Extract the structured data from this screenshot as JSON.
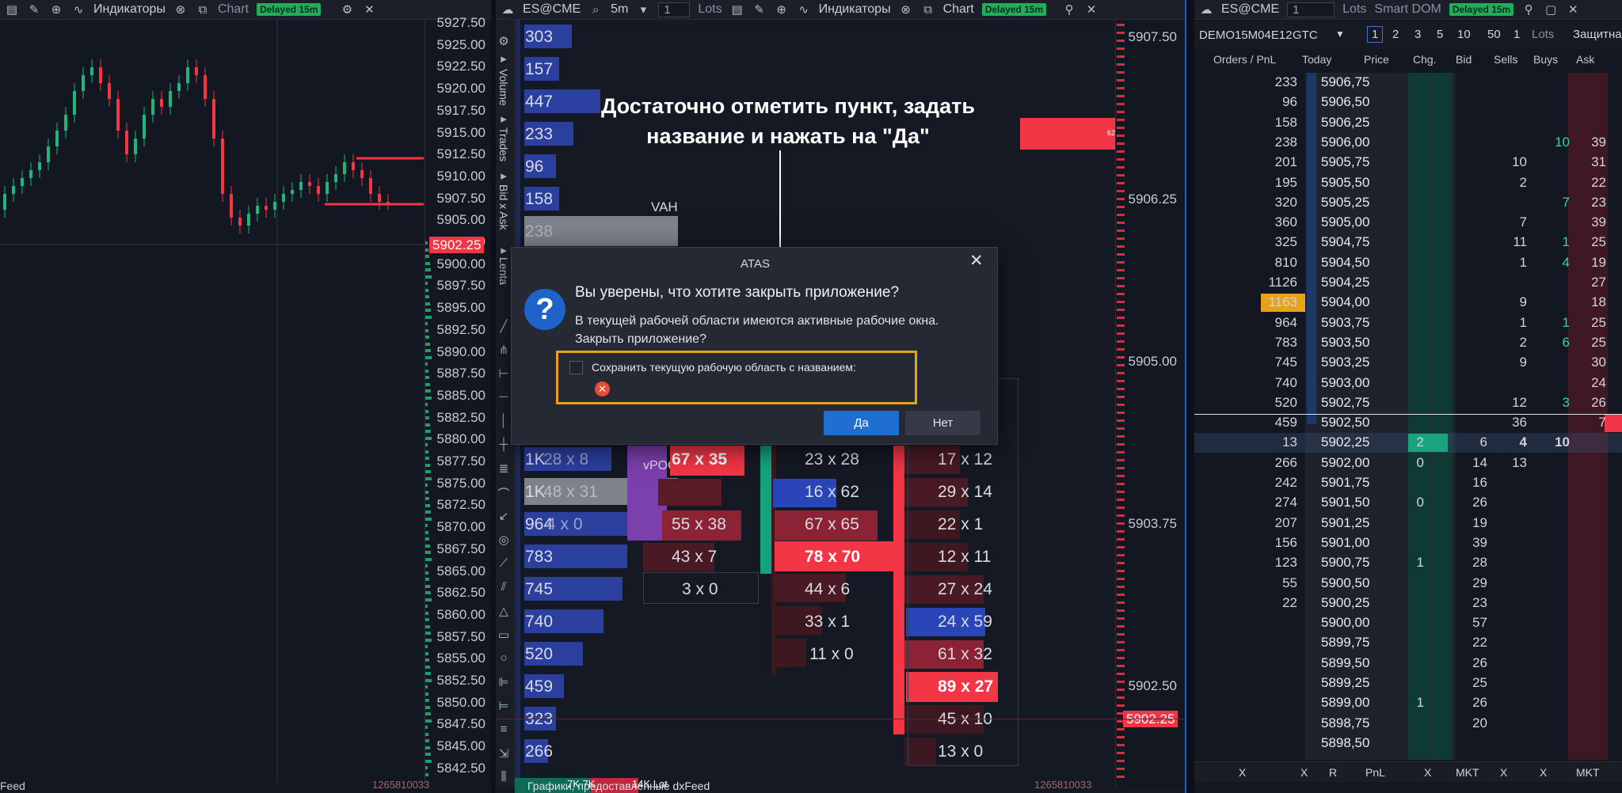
{
  "left_pane": {
    "toolbar": {
      "indicators": "Индикаторы",
      "chart": "Chart",
      "delayed": "Delayed 15m"
    },
    "price_labels": [
      "5927.50",
      "5925.00",
      "5922.50",
      "5920.00",
      "5917.50",
      "5915.00",
      "5912.50",
      "5910.00",
      "5907.50",
      "5905.00",
      "5902.50",
      "5900.00",
      "5897.50",
      "5895.00",
      "5892.50",
      "5890.00",
      "5887.50",
      "5885.00",
      "5882.50",
      "5880.00",
      "5877.50",
      "5875.00",
      "5872.50",
      "5870.00",
      "5867.50",
      "5865.00",
      "5862.50",
      "5860.00",
      "5857.50",
      "5855.00",
      "5852.50",
      "5850.00",
      "5847.50",
      "5845.00",
      "5842.50"
    ],
    "current_price": "5902.25",
    "bottom_left": "Feed",
    "bottom_right": "1265810033"
  },
  "mid_pane": {
    "toolbar": {
      "symbol": "ES@CME",
      "tf": "5m",
      "qty": "1",
      "lots": "Lots",
      "indicators": "Индикаторы",
      "chart": "Chart",
      "delayed": "Delayed 15m"
    },
    "vertical_tabs": [
      "Volume",
      "Trades",
      "Bid x Ask",
      "Lenta"
    ],
    "profile_top": [
      "303",
      "157",
      "447",
      "233",
      "96",
      "158",
      "238"
    ],
    "vah": "VAH",
    "profile_bottom": [
      "1K",
      "1K",
      "964",
      "783",
      "745",
      "740",
      "520",
      "459",
      "323",
      "266"
    ],
    "cluster_left": [
      "28 x 8",
      "48 x 31",
      "4 x 0"
    ],
    "vpoc": "vPOC",
    "cluster_c1": [
      "67 x 35",
      "55 x 38",
      "43 x 7",
      "3 x 0"
    ],
    "cluster_c2": [
      "23 x 28",
      "16 x 62",
      "67 x 65",
      "78 x 70",
      "44 x 6",
      "33 x 1",
      "11 x 0"
    ],
    "cluster_c3": [
      "17 x 12",
      "29 x 14",
      "22 x 1",
      "12 x 11",
      "27 x 24",
      "24 x 59",
      "61 x 32",
      "89 x 27",
      "45 x 10",
      "13 x 0"
    ],
    "price_labels": [
      "5907.50",
      "5906.25",
      "5905.00",
      "5903.75",
      "5902.50"
    ],
    "current_price": "5902.25",
    "bottom_text": "Графики, предоставленные dxFeed",
    "bottom_right": "1265810033",
    "bottom_left_bar": "7K 7K",
    "bottom_bar2": "14K Lot"
  },
  "annotation": {
    "line1": "Достаточно отметить пункт, задать",
    "line2": "название и нажать на \"Да\""
  },
  "dialog": {
    "title": "ATAS",
    "question": "Вы уверены, что хотите закрыть приложение?",
    "detail1": "В текущей рабочей области имеются активные рабочие окна.",
    "detail2": "Закрыть приложение?",
    "checkbox_label": "Сохранить текущую рабочую область с названием:",
    "yes": "Да",
    "no": "Нет"
  },
  "dom_pane": {
    "toolbar": {
      "symbol": "ES@CME",
      "qty": "1",
      "lots": "Lots",
      "smart": "Smart DOM",
      "delayed": "Delayed 15m"
    },
    "account": "DEMO15M04E12",
    "tif": "GTC",
    "qty_presets": [
      "1",
      "2",
      "3",
      "5",
      "10",
      "50",
      "1"
    ],
    "lots_label": "Lots",
    "protect": "Защитна",
    "headers": [
      "Orders / PnL",
      "Today",
      "Price",
      "Chg.",
      "Bid",
      "Sells",
      "Buys",
      "Ask"
    ],
    "rows": [
      {
        "today": "233",
        "price": "5906,75",
        "chg": "",
        "bid": "",
        "sells": "",
        "buys": "",
        "ask": ""
      },
      {
        "today": "96",
        "price": "5906,50",
        "chg": "",
        "bid": "",
        "sells": "",
        "buys": "",
        "ask": ""
      },
      {
        "today": "158",
        "price": "5906,25",
        "chg": "",
        "bid": "",
        "sells": "",
        "buys": "",
        "ask": ""
      },
      {
        "today": "238",
        "price": "5906,00",
        "chg": "",
        "bid": "",
        "sells": "",
        "buys": "10",
        "ask": "39"
      },
      {
        "today": "201",
        "price": "5905,75",
        "chg": "",
        "bid": "",
        "sells": "10",
        "buys": "",
        "ask": "31"
      },
      {
        "today": "195",
        "price": "5905,50",
        "chg": "",
        "bid": "",
        "sells": "2",
        "buys": "",
        "ask": "22"
      },
      {
        "today": "320",
        "price": "5905,25",
        "chg": "",
        "bid": "",
        "sells": "",
        "buys": "7",
        "ask": "23"
      },
      {
        "today": "360",
        "price": "5905,00",
        "chg": "",
        "bid": "",
        "sells": "7",
        "buys": "",
        "ask": "39"
      },
      {
        "today": "325",
        "price": "5904,75",
        "chg": "",
        "bid": "",
        "sells": "11",
        "buys": "1",
        "ask": "25"
      },
      {
        "today": "810",
        "price": "5904,50",
        "chg": "",
        "bid": "",
        "sells": "1",
        "buys": "4",
        "ask": "19"
      },
      {
        "today": "1126",
        "price": "5904,25",
        "chg": "",
        "bid": "",
        "sells": "",
        "buys": "",
        "ask": "27"
      },
      {
        "today": "1163",
        "price": "5904,00",
        "chg": "",
        "bid": "",
        "sells": "9",
        "buys": "",
        "ask": "18"
      },
      {
        "today": "964",
        "price": "5903,75",
        "chg": "",
        "bid": "",
        "sells": "1",
        "buys": "1",
        "ask": "25"
      },
      {
        "today": "783",
        "price": "5903,50",
        "chg": "",
        "bid": "",
        "sells": "2",
        "buys": "6",
        "ask": "25"
      },
      {
        "today": "745",
        "price": "5903,25",
        "chg": "",
        "bid": "",
        "sells": "9",
        "buys": "",
        "ask": "30"
      },
      {
        "today": "740",
        "price": "5903,00",
        "chg": "",
        "bid": "",
        "sells": "",
        "buys": "",
        "ask": "24"
      },
      {
        "today": "520",
        "price": "5902,75",
        "chg": "",
        "bid": "",
        "sells": "12",
        "buys": "3",
        "ask": "26"
      },
      {
        "today": "459",
        "price": "5902,50",
        "chg": "",
        "bid": "",
        "sells": "36",
        "buys": "",
        "ask": "7"
      },
      {
        "today": "13",
        "price": "5902,25",
        "chg": "2",
        "bid": "6",
        "sells": "4",
        "buys": "10",
        "ask": ""
      },
      {
        "today": "266",
        "price": "5902,00",
        "chg": "0",
        "bid": "14",
        "sells": "13",
        "buys": "",
        "ask": ""
      },
      {
        "today": "242",
        "price": "5901,75",
        "chg": "",
        "bid": "16",
        "sells": "",
        "buys": "",
        "ask": ""
      },
      {
        "today": "274",
        "price": "5901,50",
        "chg": "0",
        "bid": "26",
        "sells": "",
        "buys": "",
        "ask": ""
      },
      {
        "today": "207",
        "price": "5901,25",
        "chg": "",
        "bid": "19",
        "sells": "",
        "buys": "",
        "ask": ""
      },
      {
        "today": "156",
        "price": "5901,00",
        "chg": "",
        "bid": "39",
        "sells": "",
        "buys": "",
        "ask": ""
      },
      {
        "today": "123",
        "price": "5900,75",
        "chg": "1",
        "bid": "28",
        "sells": "",
        "buys": "",
        "ask": ""
      },
      {
        "today": "55",
        "price": "5900,50",
        "chg": "",
        "bid": "29",
        "sells": "",
        "buys": "",
        "ask": ""
      },
      {
        "today": "22",
        "price": "5900,25",
        "chg": "",
        "bid": "23",
        "sells": "",
        "buys": "",
        "ask": ""
      },
      {
        "today": "",
        "price": "5900,00",
        "chg": "",
        "bid": "57",
        "sells": "",
        "buys": "",
        "ask": ""
      },
      {
        "today": "",
        "price": "5899,75",
        "chg": "",
        "bid": "22",
        "sells": "",
        "buys": "",
        "ask": ""
      },
      {
        "today": "",
        "price": "5899,50",
        "chg": "",
        "bid": "26",
        "sells": "",
        "buys": "",
        "ask": ""
      },
      {
        "today": "",
        "price": "5899,25",
        "chg": "",
        "bid": "25",
        "sells": "",
        "buys": "",
        "ask": ""
      },
      {
        "today": "",
        "price": "5899,00",
        "chg": "1",
        "bid": "26",
        "sells": "",
        "buys": "",
        "ask": ""
      },
      {
        "today": "",
        "price": "5898,75",
        "chg": "",
        "bid": "20",
        "sells": "",
        "buys": "",
        "ask": ""
      },
      {
        "today": "",
        "price": "5898,50",
        "chg": "",
        "bid": "",
        "sells": "",
        "buys": "",
        "ask": ""
      }
    ],
    "footer": [
      "X",
      "X",
      "R",
      "PnL",
      "X",
      "MKT",
      "X",
      "X",
      "MKT"
    ]
  },
  "colors": {
    "accent_yes": "#1f6fd0",
    "highlight_orange": "#e8a21a",
    "bid_green": "#0f4a3c",
    "ask_red": "#5a1d2a"
  }
}
